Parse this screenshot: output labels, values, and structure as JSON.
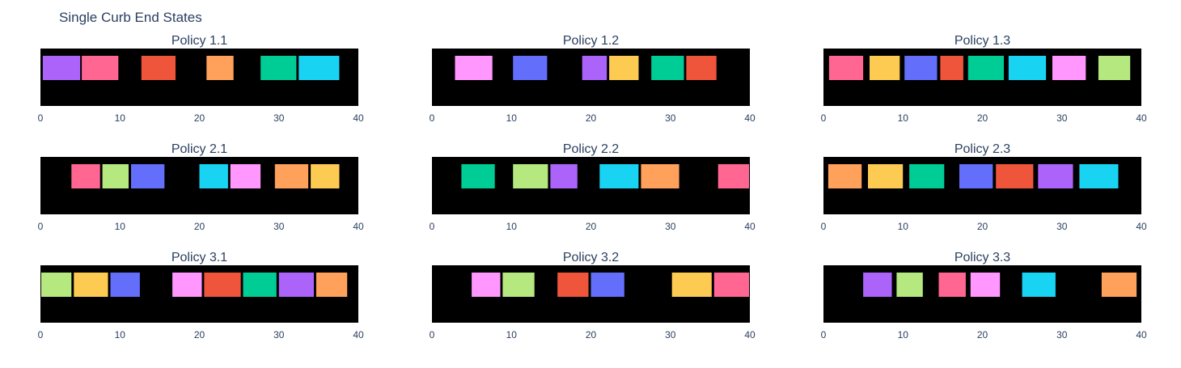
{
  "title": "Single Curb End States",
  "chart_data": {
    "type": "bar",
    "orientation": "horizontal-segments",
    "xlim": [
      0,
      40
    ],
    "x_ticks": [
      0,
      10,
      20,
      30,
      40
    ],
    "plot_background": "#000000",
    "grid": false,
    "legend": "none",
    "panels": [
      {
        "title": "Policy 1.1",
        "segments": [
          {
            "x0": 0.3,
            "x1": 5.0,
            "color": "#AB63FA"
          },
          {
            "x0": 5.2,
            "x1": 9.8,
            "color": "#FF6692"
          },
          {
            "x0": 12.7,
            "x1": 17.0,
            "color": "#EF553B"
          },
          {
            "x0": 20.9,
            "x1": 24.3,
            "color": "#FFA15A"
          },
          {
            "x0": 27.7,
            "x1": 32.2,
            "color": "#00CC96"
          },
          {
            "x0": 32.5,
            "x1": 37.6,
            "color": "#19D3F3"
          }
        ]
      },
      {
        "title": "Policy 1.2",
        "segments": [
          {
            "x0": 2.9,
            "x1": 7.6,
            "color": "#FF97FF"
          },
          {
            "x0": 10.2,
            "x1": 14.5,
            "color": "#636EFA"
          },
          {
            "x0": 18.9,
            "x1": 22.0,
            "color": "#AB63FA"
          },
          {
            "x0": 22.3,
            "x1": 26.0,
            "color": "#FECB52"
          },
          {
            "x0": 27.6,
            "x1": 31.7,
            "color": "#00CC96"
          },
          {
            "x0": 32.0,
            "x1": 35.8,
            "color": "#EF553B"
          }
        ]
      },
      {
        "title": "Policy 1.3",
        "segments": [
          {
            "x0": 0.7,
            "x1": 5.0,
            "color": "#FF6692"
          },
          {
            "x0": 5.8,
            "x1": 9.6,
            "color": "#FECB52"
          },
          {
            "x0": 10.2,
            "x1": 14.3,
            "color": "#636EFA"
          },
          {
            "x0": 14.7,
            "x1": 17.6,
            "color": "#EF553B"
          },
          {
            "x0": 18.2,
            "x1": 22.7,
            "color": "#00CC96"
          },
          {
            "x0": 23.3,
            "x1": 28.0,
            "color": "#19D3F3"
          },
          {
            "x0": 28.8,
            "x1": 33.0,
            "color": "#FF97FF"
          },
          {
            "x0": 34.6,
            "x1": 38.6,
            "color": "#B6E880"
          }
        ]
      },
      {
        "title": "Policy 2.1",
        "segments": [
          {
            "x0": 3.9,
            "x1": 7.5,
            "color": "#FF6692"
          },
          {
            "x0": 7.8,
            "x1": 11.1,
            "color": "#B6E880"
          },
          {
            "x0": 11.4,
            "x1": 15.6,
            "color": "#636EFA"
          },
          {
            "x0": 20.0,
            "x1": 23.6,
            "color": "#19D3F3"
          },
          {
            "x0": 23.9,
            "x1": 27.7,
            "color": "#FF97FF"
          },
          {
            "x0": 29.5,
            "x1": 33.7,
            "color": "#FFA15A"
          },
          {
            "x0": 34.0,
            "x1": 37.6,
            "color": "#FECB52"
          }
        ]
      },
      {
        "title": "Policy 2.2",
        "segments": [
          {
            "x0": 3.7,
            "x1": 7.9,
            "color": "#00CC96"
          },
          {
            "x0": 10.2,
            "x1": 14.6,
            "color": "#B6E880"
          },
          {
            "x0": 14.9,
            "x1": 18.3,
            "color": "#AB63FA"
          },
          {
            "x0": 21.1,
            "x1": 26.0,
            "color": "#19D3F3"
          },
          {
            "x0": 26.3,
            "x1": 31.1,
            "color": "#FFA15A"
          },
          {
            "x0": 36.0,
            "x1": 39.9,
            "color": "#FF6692"
          }
        ]
      },
      {
        "title": "Policy 2.3",
        "segments": [
          {
            "x0": 0.6,
            "x1": 4.8,
            "color": "#FFA15A"
          },
          {
            "x0": 5.6,
            "x1": 10.0,
            "color": "#FECB52"
          },
          {
            "x0": 10.8,
            "x1": 15.2,
            "color": "#00CC96"
          },
          {
            "x0": 17.1,
            "x1": 21.3,
            "color": "#636EFA"
          },
          {
            "x0": 21.7,
            "x1": 26.4,
            "color": "#EF553B"
          },
          {
            "x0": 27.0,
            "x1": 31.4,
            "color": "#AB63FA"
          },
          {
            "x0": 32.2,
            "x1": 37.1,
            "color": "#19D3F3"
          }
        ]
      },
      {
        "title": "Policy 3.1",
        "segments": [
          {
            "x0": 0.1,
            "x1": 3.9,
            "color": "#B6E880"
          },
          {
            "x0": 4.2,
            "x1": 8.5,
            "color": "#FECB52"
          },
          {
            "x0": 8.8,
            "x1": 12.5,
            "color": "#636EFA"
          },
          {
            "x0": 16.6,
            "x1": 20.3,
            "color": "#FF97FF"
          },
          {
            "x0": 20.6,
            "x1": 25.2,
            "color": "#EF553B"
          },
          {
            "x0": 25.5,
            "x1": 29.7,
            "color": "#00CC96"
          },
          {
            "x0": 30.0,
            "x1": 34.4,
            "color": "#AB63FA"
          },
          {
            "x0": 34.7,
            "x1": 38.6,
            "color": "#FFA15A"
          }
        ]
      },
      {
        "title": "Policy 3.2",
        "segments": [
          {
            "x0": 5.0,
            "x1": 8.6,
            "color": "#FF97FF"
          },
          {
            "x0": 8.9,
            "x1": 12.9,
            "color": "#B6E880"
          },
          {
            "x0": 15.8,
            "x1": 19.7,
            "color": "#EF553B"
          },
          {
            "x0": 20.0,
            "x1": 24.2,
            "color": "#636EFA"
          },
          {
            "x0": 30.2,
            "x1": 35.2,
            "color": "#FECB52"
          },
          {
            "x0": 35.5,
            "x1": 39.9,
            "color": "#FF6692"
          }
        ]
      },
      {
        "title": "Policy 3.3",
        "segments": [
          {
            "x0": 5.0,
            "x1": 8.6,
            "color": "#AB63FA"
          },
          {
            "x0": 9.2,
            "x1": 12.5,
            "color": "#B6E880"
          },
          {
            "x0": 14.5,
            "x1": 17.9,
            "color": "#FF6692"
          },
          {
            "x0": 18.5,
            "x1": 22.2,
            "color": "#FF97FF"
          },
          {
            "x0": 25.0,
            "x1": 29.2,
            "color": "#19D3F3"
          },
          {
            "x0": 35.0,
            "x1": 39.4,
            "color": "#FFA15A"
          }
        ]
      }
    ]
  }
}
